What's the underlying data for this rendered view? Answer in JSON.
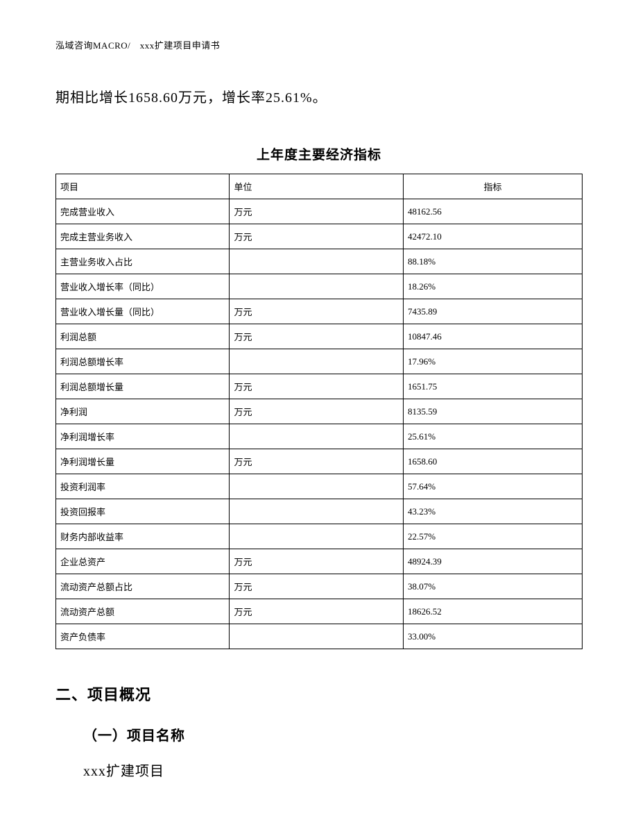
{
  "header": {
    "text": "泓域咨询MACRO/　xxx扩建项目申请书"
  },
  "body_paragraph": "期相比增长1658.60万元，增长率25.61%。",
  "table": {
    "title": "上年度主要经济指标",
    "columns": [
      "项目",
      "单位",
      "指标"
    ],
    "column_widths": [
      "33%",
      "33%",
      "34%"
    ],
    "header_align": [
      "left",
      "left",
      "center"
    ],
    "border_color": "#000000",
    "font_size": 13,
    "rows": [
      {
        "name": "完成营业收入",
        "unit": "万元",
        "value": "48162.56"
      },
      {
        "name": "完成主营业务收入",
        "unit": "万元",
        "value": "42472.10"
      },
      {
        "name": "主营业务收入占比",
        "unit": "",
        "value": "88.18%"
      },
      {
        "name": "营业收入增长率（同比）",
        "unit": "",
        "value": "18.26%"
      },
      {
        "name": "营业收入增长量（同比）",
        "unit": "万元",
        "value": "7435.89"
      },
      {
        "name": "利润总额",
        "unit": "万元",
        "value": "10847.46"
      },
      {
        "name": "利润总额增长率",
        "unit": "",
        "value": "17.96%"
      },
      {
        "name": "利润总额增长量",
        "unit": "万元",
        "value": "1651.75"
      },
      {
        "name": "净利润",
        "unit": "万元",
        "value": "8135.59"
      },
      {
        "name": "净利润增长率",
        "unit": "",
        "value": "25.61%"
      },
      {
        "name": "净利润增长量",
        "unit": "万元",
        "value": "1658.60"
      },
      {
        "name": "投资利润率",
        "unit": "",
        "value": "57.64%"
      },
      {
        "name": "投资回报率",
        "unit": "",
        "value": "43.23%"
      },
      {
        "name": "财务内部收益率",
        "unit": "",
        "value": "22.57%"
      },
      {
        "name": "企业总资产",
        "unit": "万元",
        "value": "48924.39"
      },
      {
        "name": "流动资产总额占比",
        "unit": "万元",
        "value": "38.07%"
      },
      {
        "name": "流动资产总额",
        "unit": "万元",
        "value": "18626.52"
      },
      {
        "name": "资产负债率",
        "unit": "",
        "value": "33.00%"
      }
    ]
  },
  "section": {
    "heading": "二、项目概况",
    "subsection_heading": "（一）项目名称",
    "subsection_text": "xxx扩建项目"
  },
  "colors": {
    "background": "#ffffff",
    "text": "#000000",
    "border": "#000000"
  },
  "typography": {
    "body_font": "SimSun",
    "heading_font": "SimHei",
    "body_size": 20,
    "header_size": 13,
    "table_size": 13,
    "section_heading_size": 22,
    "subsection_heading_size": 20
  }
}
